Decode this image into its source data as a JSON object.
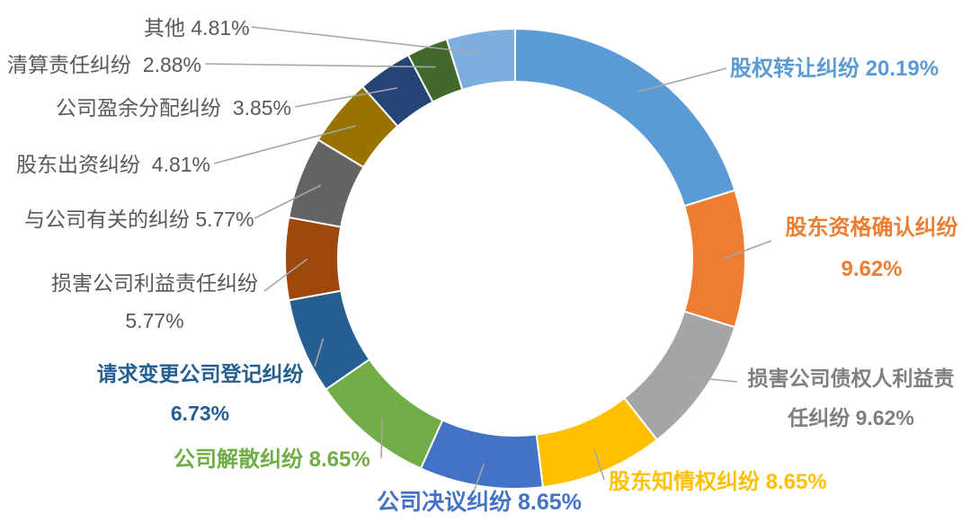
{
  "chart_data": {
    "type": "pie",
    "subtype": "donut",
    "direction": "clockwise",
    "start_angle_deg": 0,
    "donut_hole_ratio": 0.77,
    "unit": "%",
    "legend": "none",
    "segments": [
      {
        "label": "股权转让纠纷",
        "value": 20.19,
        "display": "股权转让纠纷 20.19%",
        "color": "#5B9BD5",
        "label_color": "#5B9BD5",
        "label_bold": true
      },
      {
        "label": "股东资格确认纠纷",
        "value": 9.62,
        "display": "股东资格确认纠纷\n9.62%",
        "color": "#ED7D31",
        "label_color": "#ED7D31",
        "label_bold": true
      },
      {
        "label": "损害公司债权人利益责任纠纷",
        "value": 9.62,
        "display": "损害公司债权人利益责\n任纠纷 9.62%",
        "color": "#A5A5A5",
        "label_color": "#7F7F7F",
        "label_bold": true
      },
      {
        "label": "股东知情权纠纷",
        "value": 8.65,
        "display": "股东知情权纠纷 8.65%",
        "color": "#FFC000",
        "label_color": "#FFC000",
        "label_bold": true
      },
      {
        "label": "公司决议纠纷",
        "value": 8.65,
        "display": "公司决议纠纷 8.65%",
        "color": "#4472C4",
        "label_color": "#4472C4",
        "label_bold": true
      },
      {
        "label": "公司解散纠纷",
        "value": 8.65,
        "display": "公司解散纠纷 8.65%",
        "color": "#70AD47",
        "label_color": "#70AD47",
        "label_bold": true
      },
      {
        "label": "请求变更公司登记纠纷",
        "value": 6.73,
        "display": "请求变更公司登记纠纷\n6.73%",
        "color": "#255E91",
        "label_color": "#255E91",
        "label_bold": true
      },
      {
        "label": "损害公司利益责任纠纷",
        "value": 5.77,
        "display": "损害公司利益责任纠纷\n5.77%",
        "color": "#9E480E",
        "label_color": "#595959",
        "label_bold": false
      },
      {
        "label": "与公司有关的纠纷",
        "value": 5.77,
        "display": "与公司有关的纠纷 5.77%",
        "color": "#636363",
        "label_color": "#595959",
        "label_bold": false
      },
      {
        "label": "股东出资纠纷",
        "value": 4.81,
        "display": "股东出资纠纷  4.81%",
        "color": "#997300",
        "label_color": "#595959",
        "label_bold": false
      },
      {
        "label": "公司盈余分配纠纷",
        "value": 3.85,
        "display": "公司盈余分配纠纷  3.85%",
        "color": "#264478",
        "label_color": "#595959",
        "label_bold": false
      },
      {
        "label": "清算责任纠纷",
        "value": 2.88,
        "display": "清算责任纠纷  2.88%",
        "color": "#43682B",
        "label_color": "#595959",
        "label_bold": false
      },
      {
        "label": "其他",
        "value": 4.81,
        "display": "其他 4.81%",
        "color": "#7CAFDD",
        "label_color": "#595959",
        "label_bold": false
      }
    ]
  },
  "colors": {
    "background": "#FFFFFF",
    "slice_border": "#FFFFFF",
    "leader_line": "#A6A6A6"
  }
}
